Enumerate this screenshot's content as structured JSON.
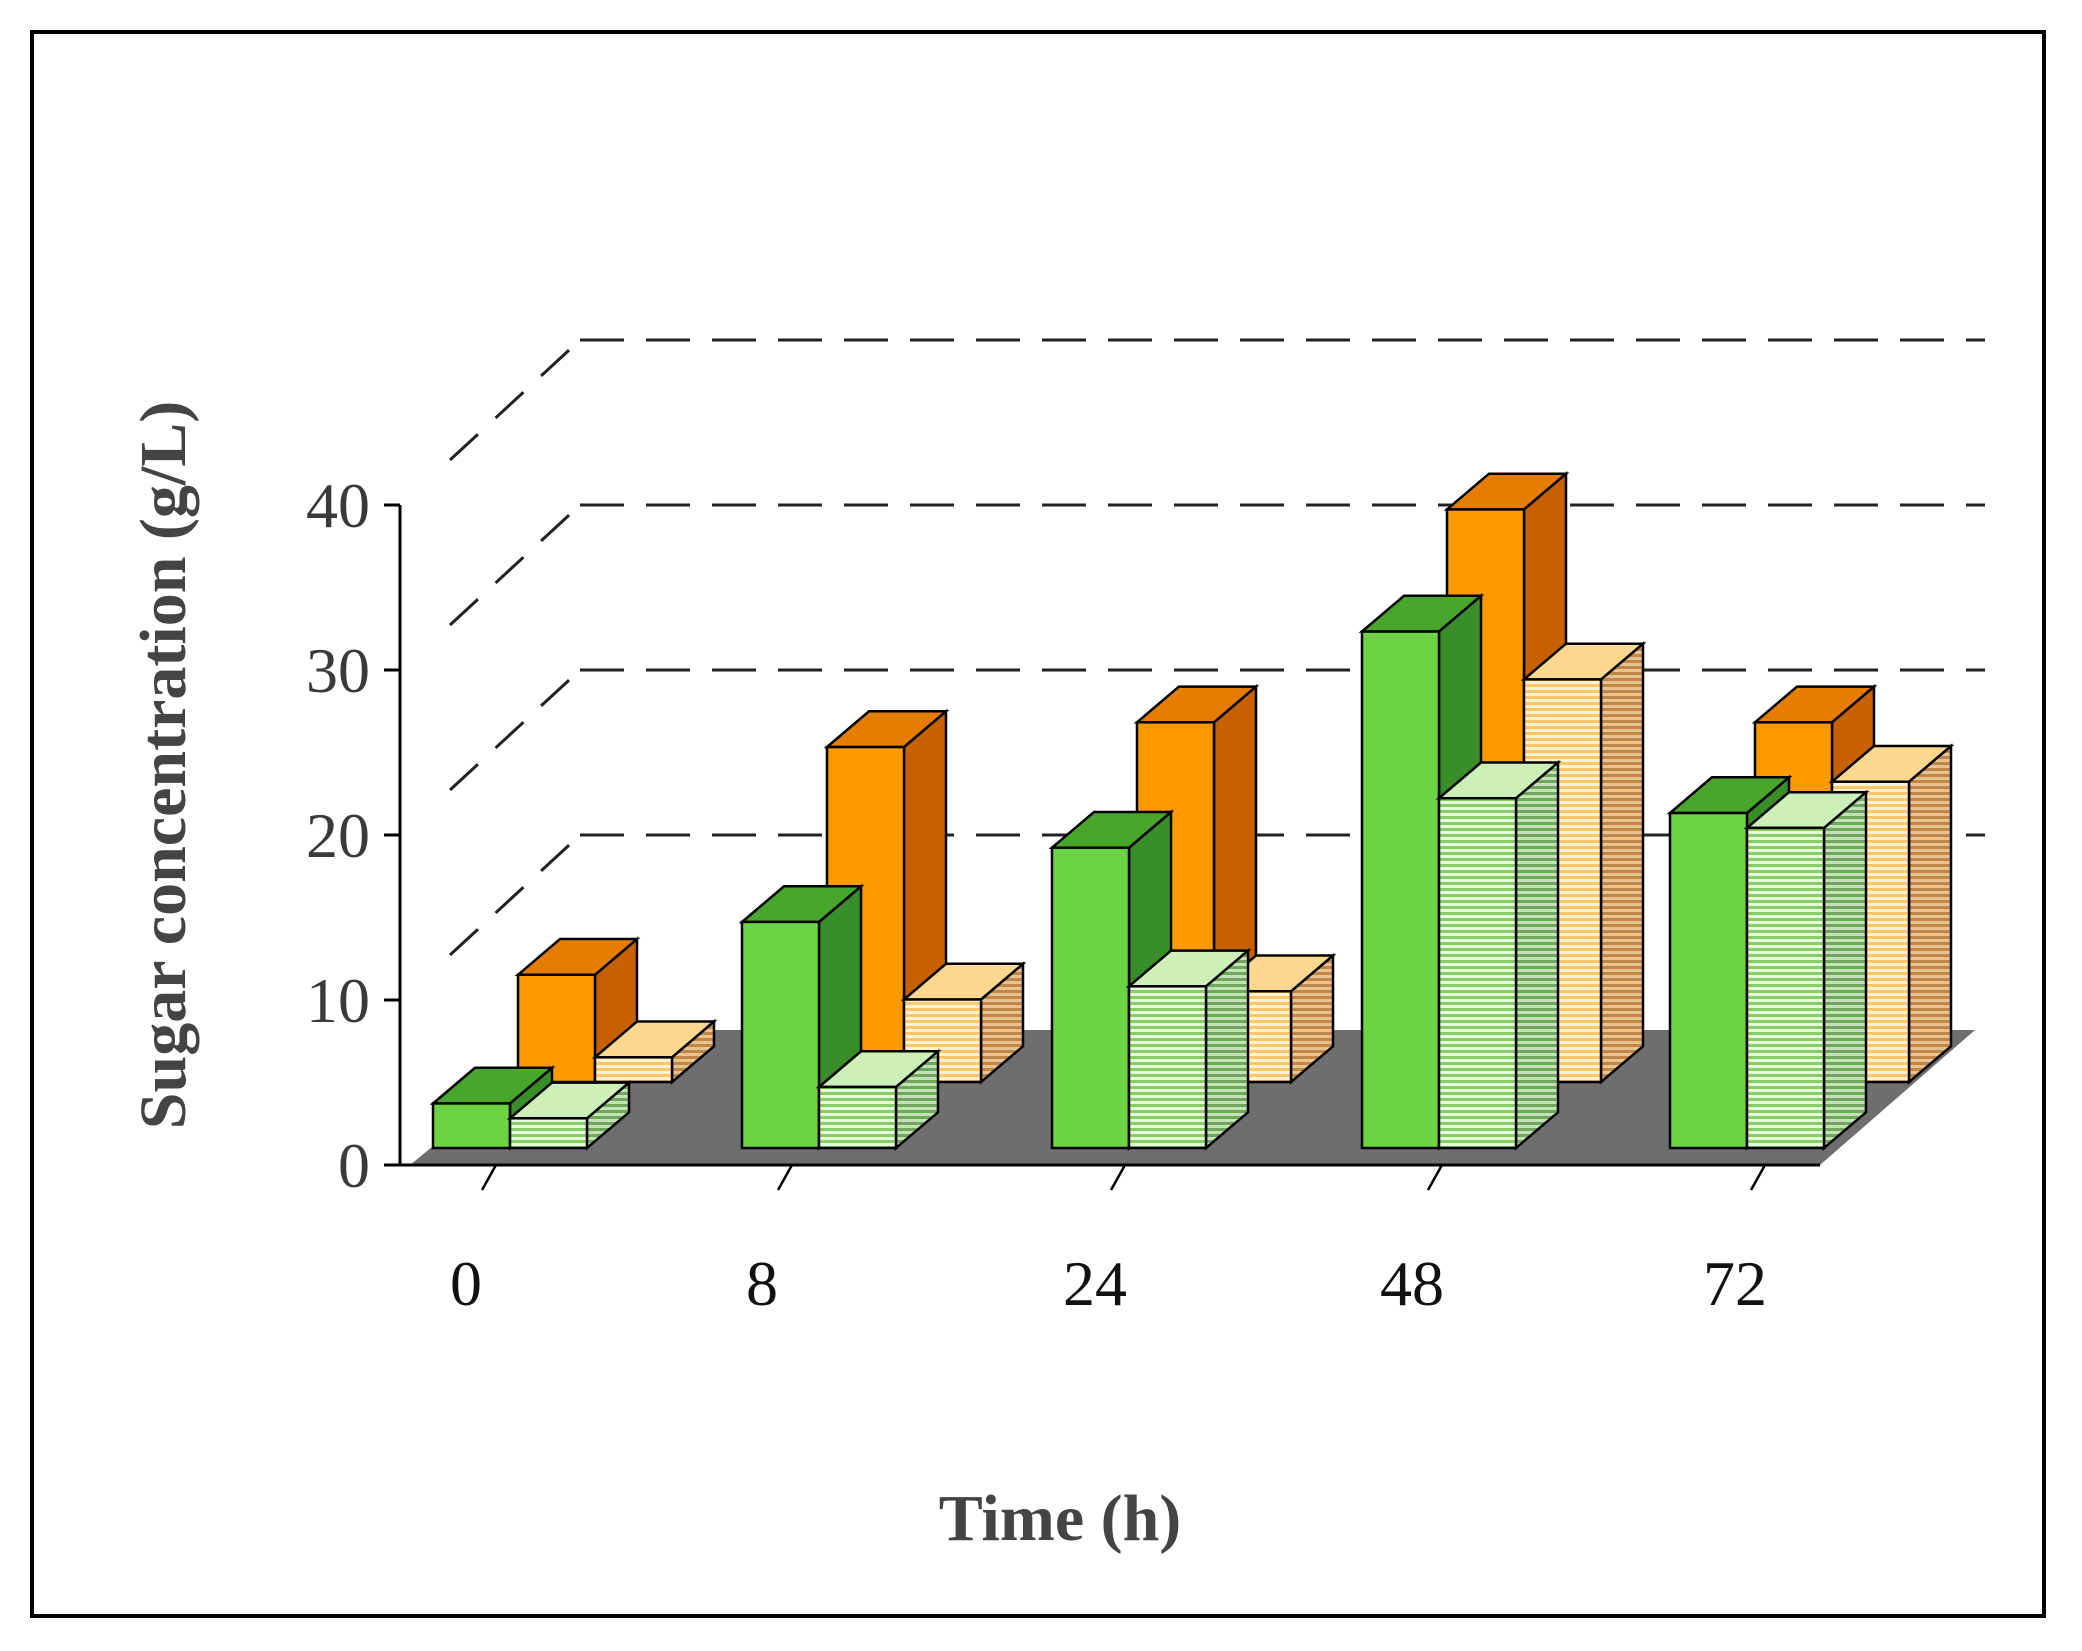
{
  "chart_data": {
    "type": "bar",
    "style": "3d-clustered",
    "title": "",
    "xlabel": "Time (h)",
    "ylabel": "Sugar concentration (g/L)",
    "categories": [
      "0",
      "8",
      "24",
      "48",
      "72"
    ],
    "ylim": [
      0,
      40
    ],
    "yticks": [
      "0",
      "10",
      "20",
      "30",
      "40"
    ],
    "grid": true,
    "legend": "none",
    "series": [
      {
        "name": "Front row, solid green",
        "row": "front",
        "values": [
          2.7,
          13.7,
          18.2,
          31.3,
          20.3
        ]
      },
      {
        "name": "Front row, striped green",
        "row": "front",
        "values": [
          1.8,
          3.7,
          9.8,
          21.2,
          19.4
        ]
      },
      {
        "name": "Back row, solid orange",
        "row": "back",
        "values": [
          6.5,
          20.3,
          21.8,
          34.7,
          21.8
        ]
      },
      {
        "name": "Back row, striped orange",
        "row": "back",
        "values": [
          1.5,
          5.0,
          5.5,
          24.4,
          18.2
        ]
      }
    ],
    "colors": {
      "green_front": "#6cd444",
      "green_top": "#48a62c",
      "green_side": "#3a8e2a",
      "stripe_green": "#cdf0b8",
      "stripe_green_side": "#9cc88c",
      "orange_front": "#ff9900",
      "orange_top": "#e57d00",
      "orange_side": "#c76000",
      "stripe_orange": "#ffd890",
      "stripe_orange_side": "#d7a061",
      "floor": "#6e6e6e",
      "grid": "#222222"
    }
  }
}
